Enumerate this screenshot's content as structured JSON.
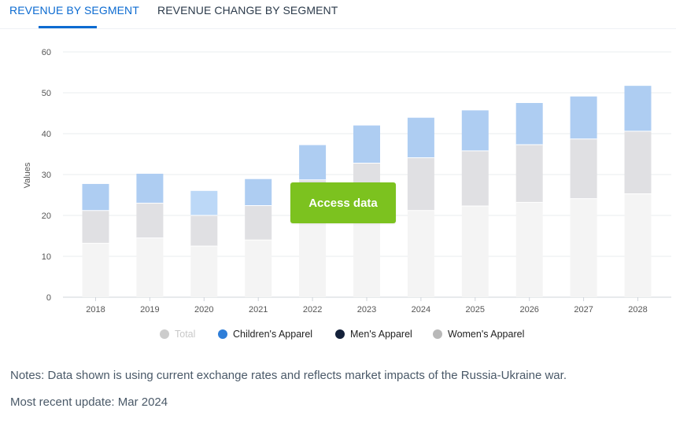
{
  "tabs": {
    "active": "REVENUE BY SEGMENT",
    "inactive": "REVENUE CHANGE BY SEGMENT"
  },
  "access_button": "Access data",
  "legend": [
    {
      "label": "Total",
      "color": "#cccccc",
      "muted": true
    },
    {
      "label": "Children's Apparel",
      "color": "#2f7ed8",
      "muted": false
    },
    {
      "label": "Men's Apparel",
      "color": "#14213a",
      "muted": false
    },
    {
      "label": "Women's Apparel",
      "color": "#b8b8b8",
      "muted": false
    }
  ],
  "notes": "Notes: Data shown is using current exchange rates and reflects market impacts of the Russia-Ukraine war.",
  "update": "Most recent update: Mar 2024",
  "colors": {
    "base": "#f4f4f4",
    "middle": "#e0e0e3",
    "top": "#aecdf2",
    "top_highlight": "#bcd8f7",
    "grid": "#e9ecef",
    "axis_text": "#555555"
  },
  "chart_data": {
    "type": "bar",
    "stacked": true,
    "ylabel": "Values",
    "ylim": [
      0,
      60
    ],
    "yticks": [
      0,
      10,
      20,
      30,
      40,
      50,
      60
    ],
    "categories": [
      "2018",
      "2019",
      "2020",
      "2021",
      "2022",
      "2023",
      "2024",
      "2025",
      "2026",
      "2027",
      "2028"
    ],
    "series": [
      {
        "values": [
          13.2,
          14.5,
          12.5,
          14.0,
          18.5,
          19.8,
          21.2,
          22.3,
          23.2,
          24.1,
          25.3
        ]
      },
      {
        "values": [
          8.0,
          8.5,
          7.5,
          8.4,
          10.2,
          13.0,
          12.9,
          13.5,
          14.1,
          14.6,
          15.3
        ]
      },
      {
        "values": [
          6.5,
          7.2,
          6.0,
          6.5,
          8.5,
          9.2,
          9.8,
          9.9,
          10.2,
          10.4,
          11.1
        ]
      }
    ]
  }
}
